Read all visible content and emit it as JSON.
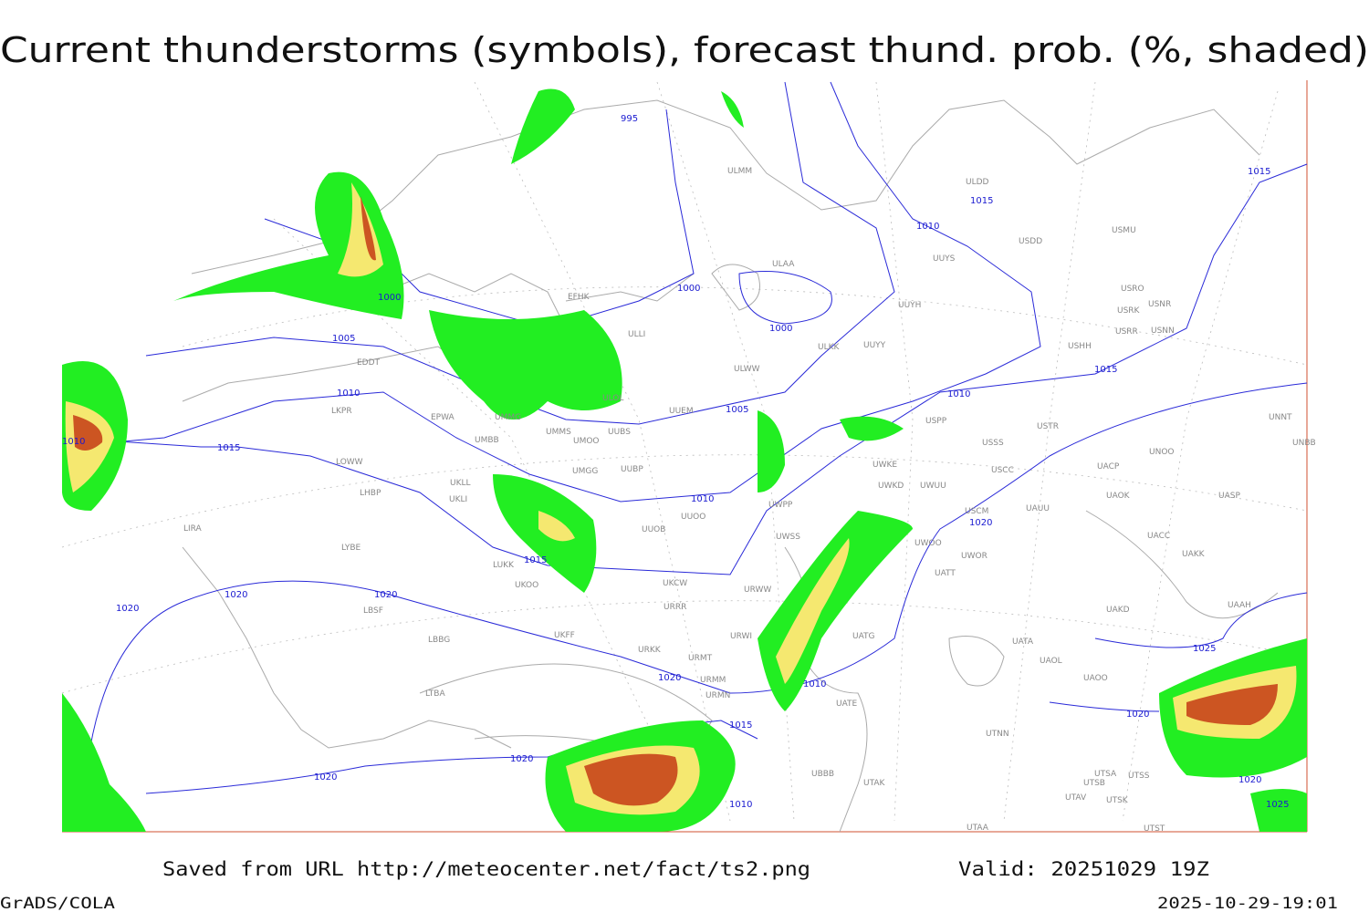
{
  "title": "Current thunderstorms (symbols), forecast thund. prob. (%, shaded)",
  "footer": {
    "source": "Saved from URL http://meteocenter.net/fact/ts2.png",
    "valid": "Valid: 20251029 19Z",
    "software": "GrADS/COLA",
    "timestamp": "2025-10-29-19:01"
  },
  "isobar_labels": [
    "995",
    "1015",
    "1015",
    "1010",
    "1000",
    "1000",
    "1000",
    "1005",
    "1005",
    "1010",
    "1010",
    "1015",
    "1010",
    "1015",
    "1010",
    "1020",
    "1015",
    "1020",
    "1020",
    "1020",
    "1025",
    "1020",
    "1010",
    "1015",
    "1020",
    "1020",
    "1020",
    "1010",
    "1020",
    "1025"
  ],
  "stations": [
    "ULDD",
    "USDD",
    "USMU",
    "ULAA",
    "UUYS",
    "USRO",
    "USRK",
    "USNR",
    "UUYH",
    "USRR",
    "USNN",
    "ULKK",
    "UUYY",
    "USHH",
    "ULWW",
    "UUEM",
    "USPP",
    "USTR",
    "UNNT",
    "USSS",
    "UNBB",
    "UWKE",
    "USCC",
    "UACP",
    "UNOO",
    "UWKD",
    "UWUU",
    "UAOK",
    "UASP",
    "USCM",
    "UAUU",
    "UWPP",
    "UACC",
    "UAKK",
    "UWOO",
    "UWOR",
    "UATT",
    "UWSS",
    "URWW",
    "UAKD",
    "UAAH",
    "URWI",
    "UATG",
    "UATA",
    "UAOL",
    "UAOO",
    "URMM",
    "URMN",
    "UATE",
    "UTNN",
    "UTSA",
    "UTSB",
    "UTSS",
    "UTAK",
    "UTAV",
    "UTSK",
    "UTST",
    "UTAA",
    "UBBB",
    "EDDT",
    "EPWA",
    "LKPR",
    "UMMG",
    "UMMS",
    "UMOO",
    "UUBS",
    "UMBB",
    "LOWW",
    "UKLL",
    "UKLI",
    "LHBP",
    "UMGG",
    "UUBP",
    "UUOO",
    "UUOB",
    "LIRA",
    "LYBE",
    "LUKK",
    "UKOO",
    "UKCW",
    "URRR",
    "LBSF",
    "UKFF",
    "LBBG",
    "URKK",
    "URMT",
    "LTBA",
    "EFHK",
    "ULLI",
    "ULOL",
    "ULMM"
  ]
}
